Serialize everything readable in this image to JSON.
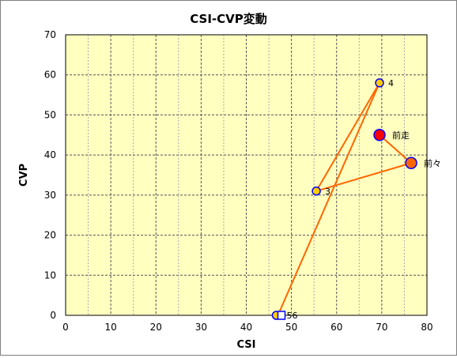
{
  "chart_data": {
    "type": "scatter",
    "title": "CSI-CVP変動",
    "xlabel": "CSI",
    "ylabel": "CVP",
    "xlim": [
      0,
      80
    ],
    "ylim": [
      0,
      70
    ],
    "xticks": [
      "0",
      "10",
      "20",
      "30",
      "40",
      "50",
      "60",
      "70",
      "80"
    ],
    "yticks": [
      "0",
      "10",
      "20",
      "30",
      "40",
      "50",
      "60",
      "70"
    ],
    "grid": true,
    "plot_background": "#ffffc0",
    "line_color": "#ff6600",
    "points": [
      {
        "label": "前走",
        "x": 69.5,
        "y": 45,
        "fill": "#ff0000",
        "stroke": "#0000ff",
        "size": "large"
      },
      {
        "label": "前々",
        "x": 76.5,
        "y": 38,
        "fill": "#ff6600",
        "stroke": "#0000ff",
        "size": "large"
      },
      {
        "label": "3",
        "x": 55.5,
        "y": 31,
        "fill": "#ffcc00",
        "stroke": "#0000ff",
        "size": "small"
      },
      {
        "label": "4",
        "x": 69.5,
        "y": 58,
        "fill": "#ffcc00",
        "stroke": "#0000ff",
        "size": "small"
      },
      {
        "label": "56",
        "x": 47,
        "y": 0,
        "fill": "#ffcc00",
        "stroke": "#0000ff",
        "size": "small"
      }
    ],
    "path_order": [
      "前走",
      "前々",
      "3",
      "4",
      "56"
    ]
  }
}
